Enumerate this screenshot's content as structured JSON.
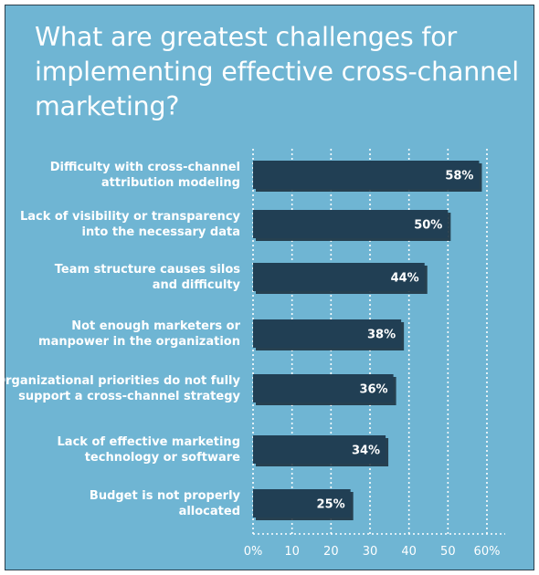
{
  "chart_data": {
    "type": "bar",
    "orientation": "horizontal",
    "title": "What are greatest challenges for implementing effective cross-channel marketing?",
    "categories": [
      [
        "Difficulty with cross-channel",
        "attribution modeling"
      ],
      [
        "Lack of visibility or transparency",
        "into the necessary data"
      ],
      [
        "Team structure causes silos",
        "and difficulty"
      ],
      [
        "Not enough marketers or",
        "manpower in the organization"
      ],
      [
        "Organizational priorities do not fully",
        "support a cross-channel strategy"
      ],
      [
        "Lack of effective marketing",
        "technology or software"
      ],
      [
        "Budget is not properly",
        "allocated"
      ]
    ],
    "values": [
      58,
      50,
      44,
      38,
      36,
      34,
      25
    ],
    "value_labels": [
      "58%",
      "50%",
      "44%",
      "38%",
      "36%",
      "34%",
      "25%"
    ],
    "xlim": [
      0,
      60
    ],
    "xticks": [
      0,
      10,
      20,
      30,
      40,
      50,
      60
    ],
    "xtick_labels": [
      "0%",
      "10",
      "20",
      "30",
      "40",
      "50",
      "60%"
    ],
    "grid": true,
    "legend": "none",
    "colors": {
      "background": "#6fb5d3",
      "bar": "#213f54",
      "bar_shadow": "#1a2c38",
      "text": "#ffffff",
      "grid": "#ffffff"
    }
  }
}
